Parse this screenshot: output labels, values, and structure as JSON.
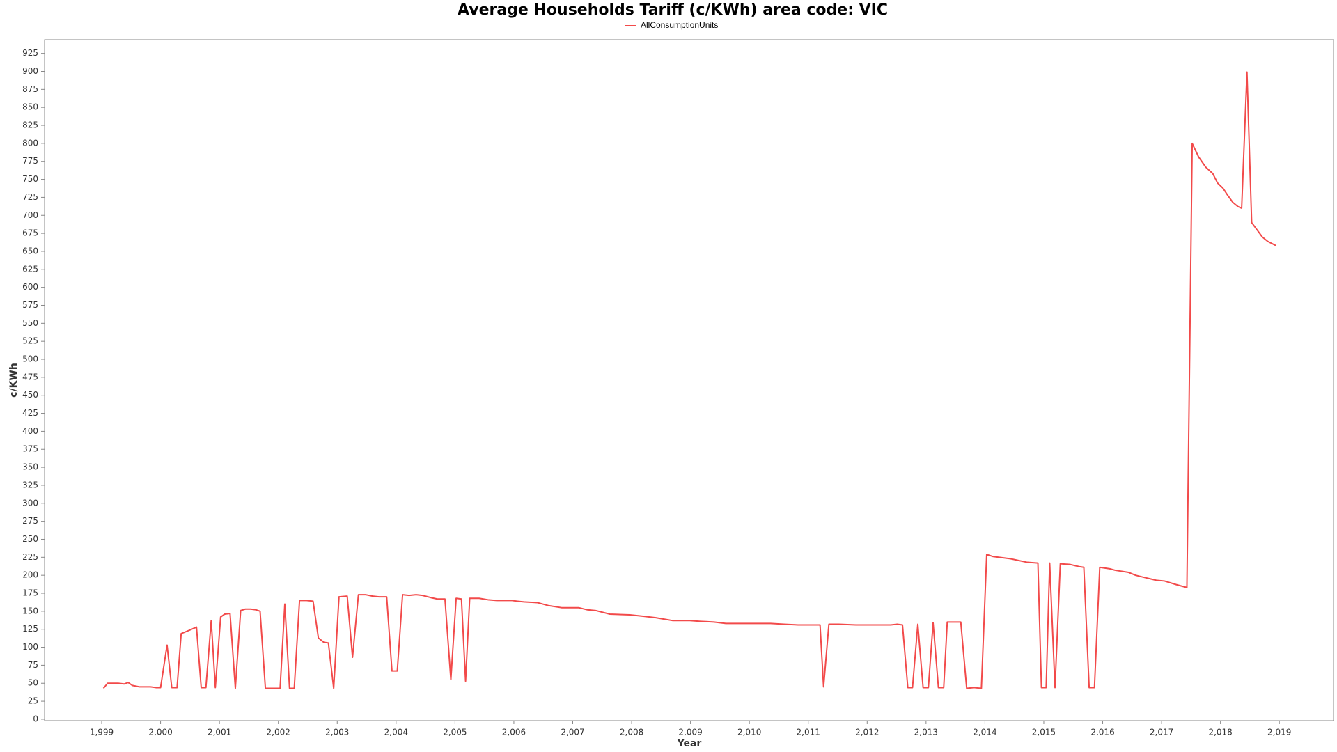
{
  "chart_data": {
    "type": "line",
    "title": "Average Households Tariff (c/KWh) area code: VIC",
    "xlabel": "Year",
    "ylabel": "c/KWh",
    "x": [
      1999.03,
      1999.1,
      1999.28,
      1999.38,
      1999.45,
      1999.52,
      1999.64,
      1999.83,
      1999.92,
      2000.0,
      2000.11,
      2000.19,
      2000.28,
      2000.35,
      2000.5,
      2000.61,
      2000.69,
      2000.77,
      2000.86,
      2000.93,
      2001.02,
      2001.09,
      2001.18,
      2001.27,
      2001.36,
      2001.44,
      2001.53,
      2001.62,
      2001.69,
      2001.78,
      2001.87,
      2002.03,
      2002.11,
      2002.19,
      2002.27,
      2002.36,
      2002.48,
      2002.59,
      2002.68,
      2002.77,
      2002.85,
      2002.94,
      2003.03,
      2003.17,
      2003.26,
      2003.36,
      2003.48,
      2003.6,
      2003.71,
      2003.84,
      2003.93,
      2004.02,
      2004.11,
      2004.22,
      2004.34,
      2004.45,
      2004.59,
      2004.7,
      2004.83,
      2004.93,
      2005.02,
      2005.11,
      2005.18,
      2005.25,
      2005.41,
      2005.56,
      2005.71,
      2005.97,
      2006.05,
      2006.17,
      2006.4,
      2006.58,
      2006.81,
      2007.1,
      2007.25,
      2007.39,
      2007.63,
      2007.97,
      2008.21,
      2008.41,
      2008.7,
      2008.99,
      2009.17,
      2009.4,
      2009.6,
      2009.95,
      2010.36,
      2010.59,
      2010.83,
      2011.12,
      2011.2,
      2011.26,
      2011.35,
      2011.52,
      2011.81,
      2012.11,
      2012.4,
      2012.51,
      2012.6,
      2012.69,
      2012.77,
      2012.86,
      2012.95,
      2013.04,
      2013.12,
      2013.21,
      2013.3,
      2013.36,
      2013.59,
      2013.69,
      2013.81,
      2013.94,
      2014.03,
      2014.14,
      2014.43,
      2014.72,
      2014.9,
      2014.96,
      2015.04,
      2015.1,
      2015.19,
      2015.28,
      2015.45,
      2015.6,
      2015.68,
      2015.77,
      2015.86,
      2015.95,
      2016.12,
      2016.21,
      2016.44,
      2016.56,
      2016.76,
      2016.91,
      2017.05,
      2017.25,
      2017.43,
      2017.52,
      2017.63,
      2017.75,
      2017.87,
      2017.95,
      2018.04,
      2018.13,
      2018.21,
      2018.3,
      2018.36,
      2018.45,
      2018.53,
      2018.62,
      2018.71,
      2018.8,
      2018.94
    ],
    "series": [
      {
        "name": "AllConsumptionUnits",
        "color": "#f24a4a",
        "values": [
          43,
          50,
          50,
          49,
          51,
          47,
          45,
          45,
          44,
          44,
          103,
          44,
          44,
          119,
          124,
          128,
          44,
          44,
          137,
          44,
          142,
          146,
          147,
          43,
          151,
          153,
          153,
          152,
          150,
          43,
          43,
          43,
          160,
          43,
          43,
          165,
          165,
          164,
          113,
          107,
          106,
          43,
          170,
          171,
          86,
          173,
          173,
          171,
          170,
          170,
          67,
          67,
          173,
          172,
          173,
          172,
          169,
          167,
          167,
          55,
          168,
          167,
          53,
          168,
          168,
          166,
          165,
          165,
          164,
          163,
          162,
          158,
          155,
          155,
          152,
          151,
          146,
          145,
          143,
          141,
          137,
          137,
          136,
          135,
          133,
          133,
          133,
          132,
          131,
          131,
          131,
          45,
          132,
          132,
          131,
          131,
          131,
          132,
          131,
          44,
          44,
          132,
          44,
          44,
          134,
          44,
          44,
          135,
          135,
          43,
          44,
          43,
          229,
          226,
          223,
          218,
          217,
          44,
          44,
          217,
          44,
          216,
          215,
          212,
          211,
          44,
          44,
          211,
          209,
          207,
          204,
          200,
          196,
          193,
          192,
          187,
          183,
          800,
          781,
          767,
          758,
          745,
          738,
          727,
          718,
          712,
          710,
          899,
          690,
          680,
          670,
          664,
          658
        ]
      }
    ],
    "xlim": [
      1998.03,
      2019.92
    ],
    "xticks": [
      {
        "value": 1999,
        "label": "1,999"
      },
      {
        "value": 2000,
        "label": "2,000"
      },
      {
        "value": 2001,
        "label": "2,001"
      },
      {
        "value": 2002,
        "label": "2,002"
      },
      {
        "value": 2003,
        "label": "2,003"
      },
      {
        "value": 2004,
        "label": "2,004"
      },
      {
        "value": 2005,
        "label": "2,005"
      },
      {
        "value": 2006,
        "label": "2,006"
      },
      {
        "value": 2007,
        "label": "2,007"
      },
      {
        "value": 2008,
        "label": "2,008"
      },
      {
        "value": 2009,
        "label": "2,009"
      },
      {
        "value": 2010,
        "label": "2,010"
      },
      {
        "value": 2011,
        "label": "2,011"
      },
      {
        "value": 2012,
        "label": "2,012"
      },
      {
        "value": 2013,
        "label": "2,013"
      },
      {
        "value": 2014,
        "label": "2,014"
      },
      {
        "value": 2015,
        "label": "2,015"
      },
      {
        "value": 2016,
        "label": "2,016"
      },
      {
        "value": 2017,
        "label": "2,017"
      },
      {
        "value": 2018,
        "label": "2,018"
      },
      {
        "value": 2019,
        "label": "2,019"
      }
    ],
    "ylim": [
      -2,
      944
    ],
    "yticks": [
      0,
      25,
      50,
      75,
      100,
      125,
      150,
      175,
      200,
      225,
      250,
      275,
      300,
      325,
      350,
      375,
      400,
      425,
      450,
      475,
      500,
      525,
      550,
      575,
      600,
      625,
      650,
      675,
      700,
      725,
      750,
      775,
      800,
      825,
      850,
      875,
      900,
      925
    ]
  }
}
